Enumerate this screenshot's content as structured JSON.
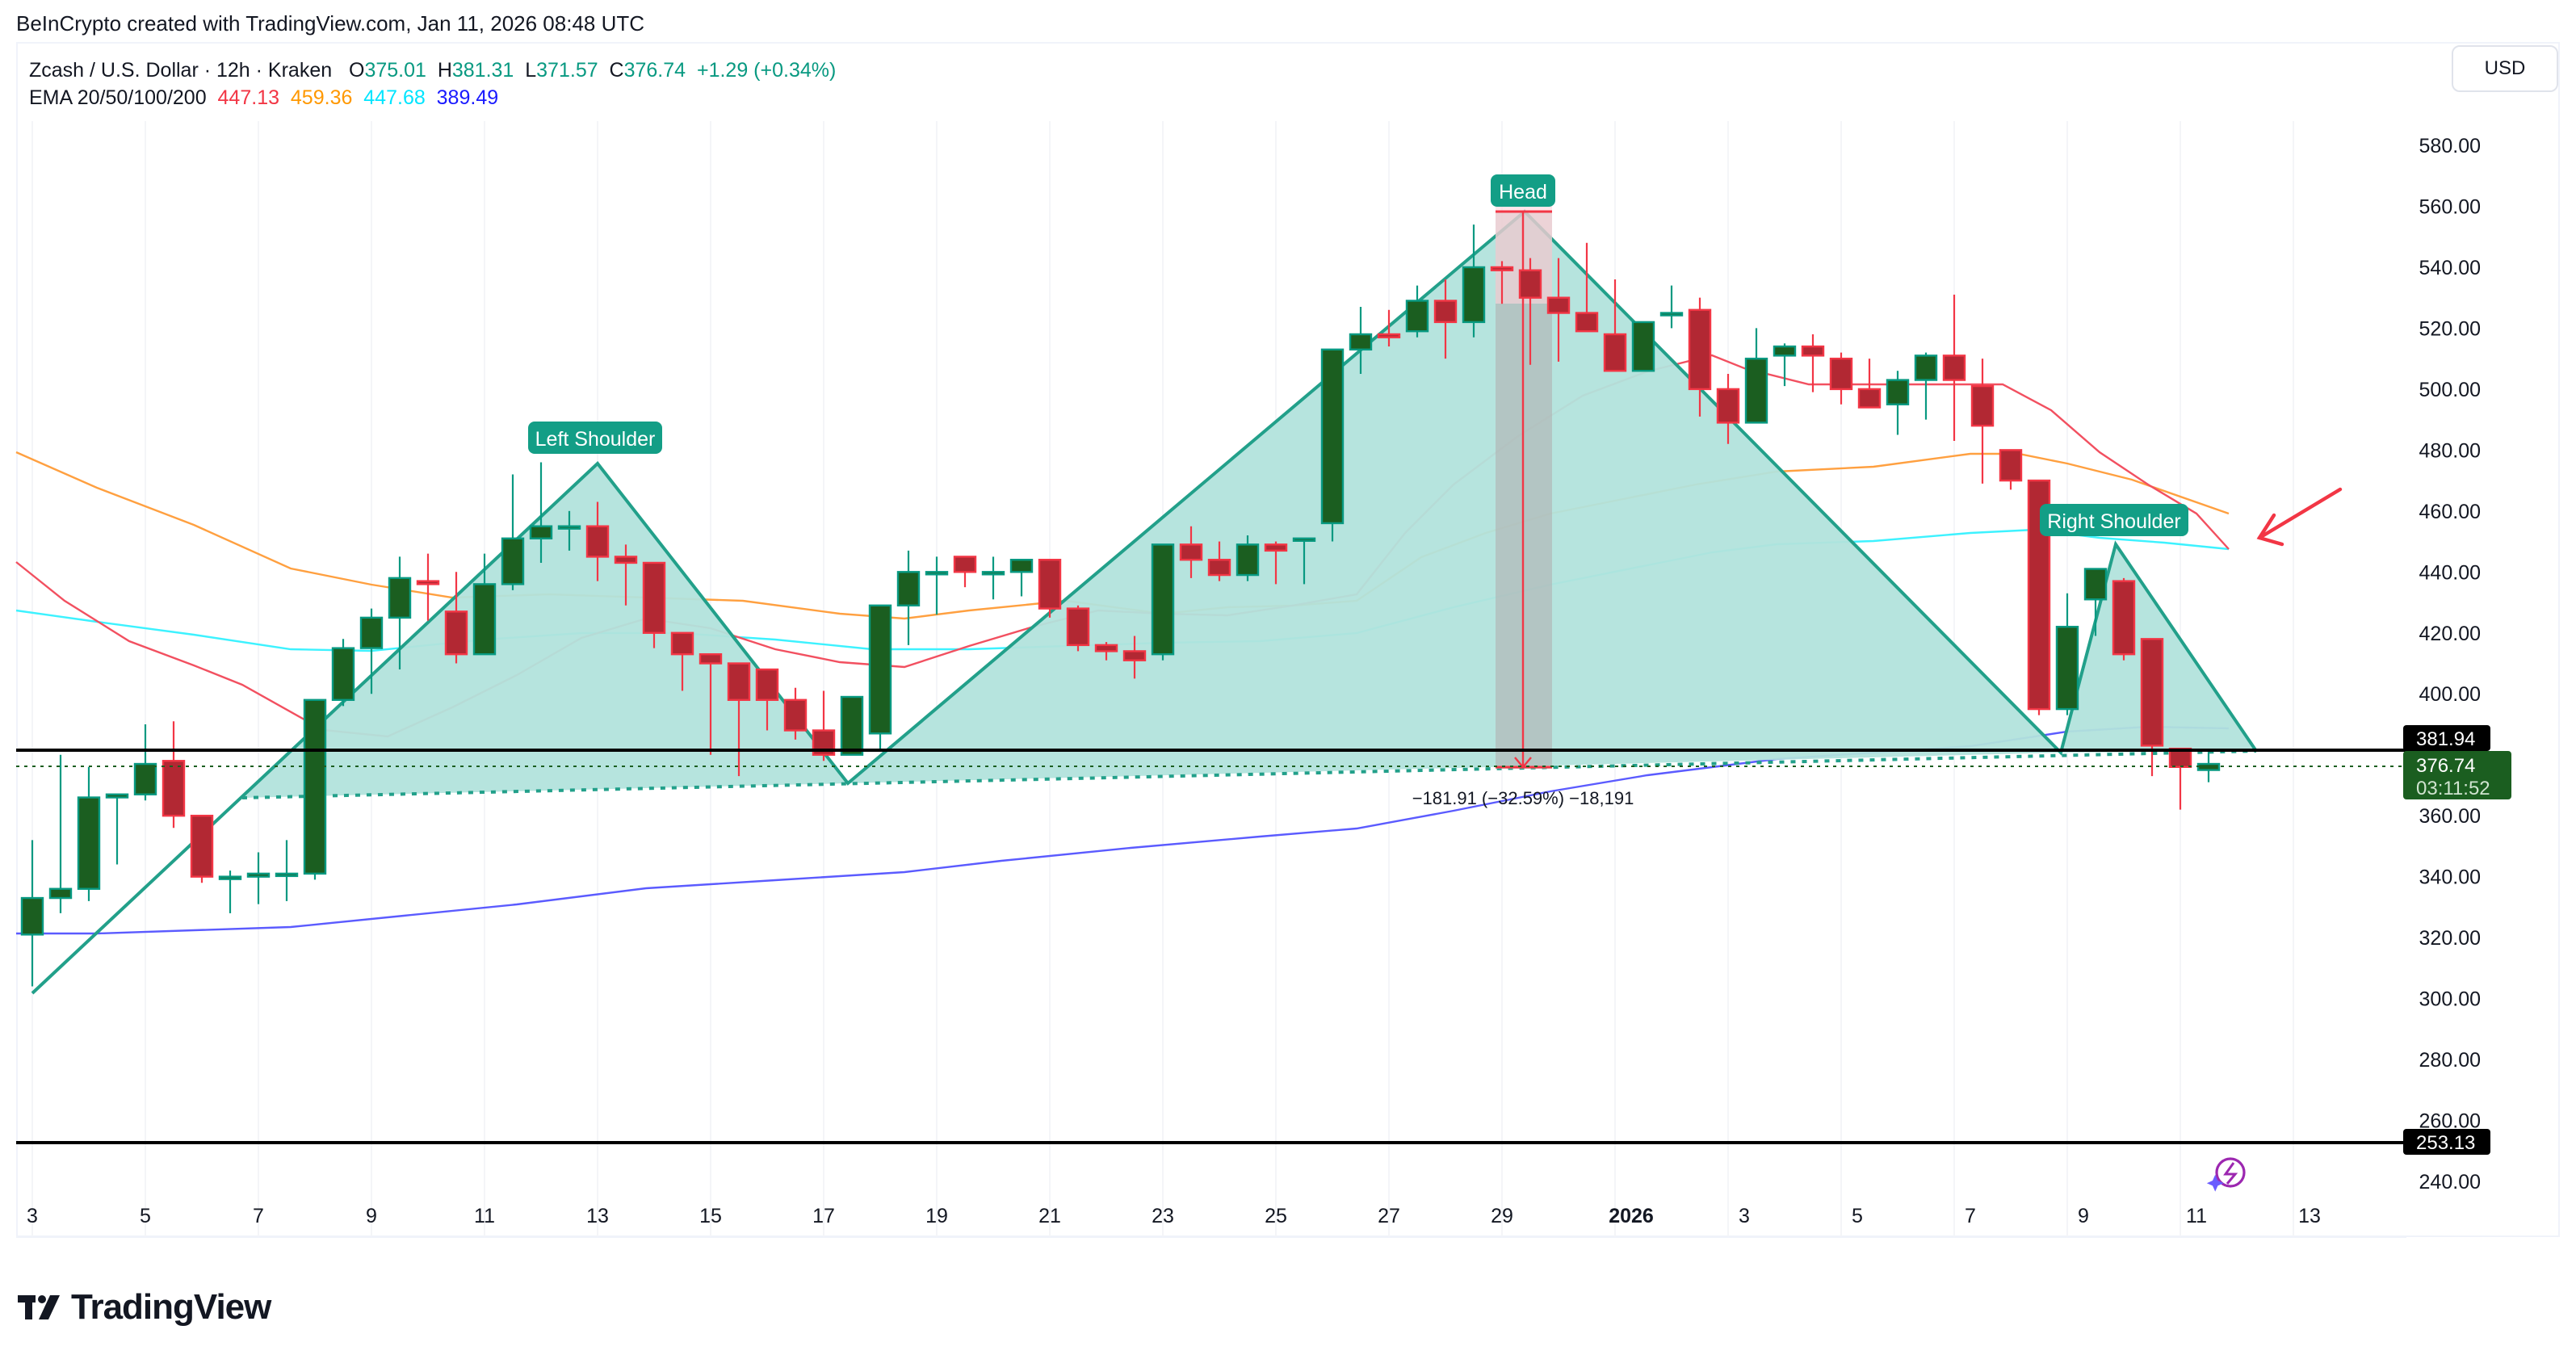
{
  "credit": "BeInCrypto created with TradingView.com, Jan 11, 2026 08:48 UTC",
  "legend": {
    "symbol": "Zcash / U.S. Dollar · 12h · Kraken",
    "o_label": "O",
    "o": "375.01",
    "h_label": "H",
    "h": "381.31",
    "l_label": "L",
    "l": "371.57",
    "c_label": "C",
    "c": "376.74",
    "change": "+1.29 (+0.34%)",
    "ema_label": "EMA 20/50/100/200",
    "ema20": "447.13",
    "ema50": "459.36",
    "ema100": "447.68",
    "ema200": "389.49"
  },
  "currency_button": "USD",
  "price_axis": {
    "ticks": [
      "580.00",
      "560.00",
      "540.00",
      "520.00",
      "500.00",
      "480.00",
      "460.00",
      "440.00",
      "420.00",
      "400.00",
      "360.00",
      "340.00",
      "320.00",
      "300.00",
      "280.00",
      "260.00",
      "240.00"
    ],
    "neckline_label": "381.94",
    "last_price_label": "376.74",
    "countdown": "03:11:52",
    "support_label": "253.13"
  },
  "time_axis": {
    "ticks": [
      "3",
      "5",
      "7",
      "9",
      "11",
      "13",
      "15",
      "17",
      "19",
      "21",
      "23",
      "25",
      "27",
      "29",
      "2026",
      "3",
      "5",
      "7",
      "9",
      "11",
      "13"
    ]
  },
  "annotations": {
    "left_shoulder": "Left Shoulder",
    "head": "Head",
    "right_shoulder": "Right Shoulder",
    "measure": "−181.91 (−32.59%) −18,191"
  },
  "brand": "TradingView",
  "colors": {
    "up_body": "#1b5e20",
    "up_border": "#089981",
    "down_body": "#b22833",
    "down_border": "#f23645",
    "ema20": "#f23645",
    "ema50": "#ff9800",
    "ema100": "#00e5ff",
    "ema200": "#3d3dff",
    "pattern_fill": "#b2e3dc",
    "pattern_line": "#22a08a",
    "label_bg": "#139e86"
  },
  "chart_data": {
    "type": "candlestick",
    "title": "Zcash / U.S. Dollar · 12h · Kraken",
    "xlabel": "",
    "ylabel": "USD",
    "ylim": [
      240,
      585
    ],
    "x_tick_labels": [
      "Dec 3",
      "Dec 5",
      "Dec 7",
      "Dec 9",
      "Dec 11",
      "Dec 13",
      "Dec 15",
      "Dec 17",
      "Dec 19",
      "Dec 21",
      "Dec 23",
      "Dec 25",
      "Dec 27",
      "Dec 29",
      "2026",
      "Jan 3",
      "Jan 5",
      "Jan 7",
      "Jan 9",
      "Jan 11",
      "Jan 13"
    ],
    "candles_ohlc": [
      [
        321,
        352,
        304,
        333
      ],
      [
        333,
        380,
        328,
        336
      ],
      [
        336,
        376,
        332,
        366
      ],
      [
        366,
        367,
        344,
        367
      ],
      [
        367,
        390,
        365,
        377
      ],
      [
        378,
        391,
        356,
        360
      ],
      [
        360,
        352,
        338,
        340
      ],
      [
        340,
        342,
        328,
        340
      ],
      [
        340,
        348,
        331,
        341
      ],
      [
        341,
        352,
        332,
        341
      ],
      [
        341,
        398,
        339,
        398
      ],
      [
        398,
        418,
        396,
        415
      ],
      [
        415,
        428,
        400,
        425
      ],
      [
        425,
        445,
        408,
        438
      ],
      [
        437,
        446,
        424,
        436
      ],
      [
        427,
        440,
        410,
        413
      ],
      [
        413,
        446,
        413,
        436
      ],
      [
        436,
        472,
        434,
        451
      ],
      [
        451,
        476,
        443,
        455
      ],
      [
        455,
        460,
        447,
        455
      ],
      [
        455,
        463,
        437,
        445
      ],
      [
        445,
        449,
        429,
        443
      ],
      [
        443,
        442,
        415,
        420
      ],
      [
        420,
        405,
        401,
        413
      ],
      [
        413,
        413,
        380,
        410
      ],
      [
        410,
        405,
        373,
        398
      ],
      [
        408,
        407,
        388,
        398
      ],
      [
        398,
        402,
        385,
        388
      ],
      [
        388,
        401,
        378,
        380
      ],
      [
        380,
        390,
        380,
        399
      ],
      [
        387,
        428,
        381,
        429
      ],
      [
        429,
        447,
        416,
        440
      ],
      [
        440,
        445,
        426,
        440
      ],
      [
        445,
        443,
        435,
        440
      ],
      [
        440,
        445,
        431,
        440
      ],
      [
        440,
        444,
        432,
        444
      ],
      [
        444,
        444,
        425,
        428
      ],
      [
        428,
        429,
        414,
        416
      ],
      [
        416,
        417,
        411,
        414
      ],
      [
        414,
        419,
        405,
        411
      ],
      [
        413,
        449,
        411,
        449
      ],
      [
        449,
        455,
        438,
        444
      ],
      [
        444,
        450,
        437,
        439
      ],
      [
        439,
        452,
        437,
        449
      ],
      [
        449,
        450,
        436,
        447
      ],
      [
        451,
        449,
        436,
        451
      ],
      [
        456,
        513,
        450,
        513
      ],
      [
        513,
        527,
        505,
        518
      ],
      [
        518,
        526,
        514,
        517
      ],
      [
        519,
        534,
        517,
        529
      ],
      [
        529,
        536,
        510,
        522
      ],
      [
        522,
        554,
        517,
        540
      ],
      [
        540,
        542,
        528,
        539
      ],
      [
        539,
        543,
        508,
        530
      ],
      [
        530,
        543,
        509,
        525
      ],
      [
        525,
        548,
        522,
        519
      ],
      [
        518,
        536,
        506,
        506
      ],
      [
        506,
        520,
        506,
        522
      ],
      [
        525,
        534,
        520,
        525
      ],
      [
        526,
        530,
        491,
        500
      ],
      [
        500,
        505,
        482,
        489
      ],
      [
        489,
        520,
        489,
        510
      ],
      [
        511,
        515,
        501,
        514
      ],
      [
        514,
        518,
        499,
        511
      ],
      [
        510,
        512,
        495,
        500
      ],
      [
        500,
        510,
        495,
        494
      ],
      [
        495,
        506,
        485,
        503
      ],
      [
        503,
        512,
        490,
        511
      ],
      [
        511,
        531,
        483,
        503
      ],
      [
        501,
        510,
        469,
        488
      ],
      [
        480,
        480,
        467,
        470
      ],
      [
        470,
        470,
        393,
        395
      ],
      [
        395,
        433,
        393,
        422
      ],
      [
        431,
        441,
        419,
        441
      ],
      [
        437,
        438,
        411,
        413
      ],
      [
        418,
        416,
        373,
        383
      ],
      [
        382,
        375,
        362,
        376
      ],
      [
        375,
        381,
        371,
        377
      ]
    ],
    "series": [
      {
        "name": "EMA 20",
        "last": 447.13,
        "color": "#f23645"
      },
      {
        "name": "EMA 50",
        "last": 459.36,
        "color": "#ff9800"
      },
      {
        "name": "EMA 100",
        "last": 447.68,
        "color": "#00e5ff"
      },
      {
        "name": "EMA 200",
        "last": 389.49,
        "color": "#3d3dff"
      }
    ],
    "pattern": {
      "name": "Head and Shoulders",
      "left_shoulder_high": 476,
      "head_high": 558,
      "right_shoulder_high": 450,
      "neckline": 381.94,
      "support": 253.13,
      "measured_move": "−181.91 (−32.59%)"
    },
    "horizontal_lines": [
      381.94,
      253.13
    ],
    "last_price": 376.74
  }
}
